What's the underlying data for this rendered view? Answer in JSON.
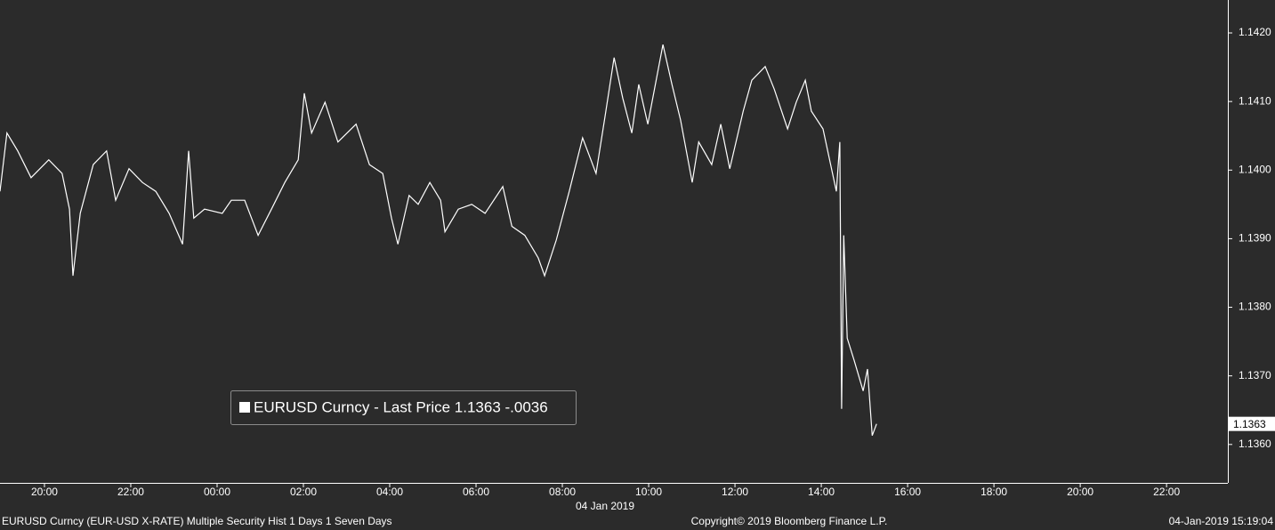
{
  "chart_data": {
    "type": "line",
    "series": [
      {
        "name": "EURUSD Curncy - Last Price 1.1363  -.0036",
        "color": "#ffffff",
        "x": [
          18.97,
          19.13,
          19.38,
          19.69,
          20.1,
          20.41,
          20.58,
          20.66,
          20.83,
          21.13,
          21.44,
          21.65,
          21.96,
          22.27,
          22.58,
          22.89,
          23.2,
          23.34,
          23.46,
          23.71,
          24.12,
          24.33,
          24.64,
          24.95,
          25.26,
          25.57,
          25.88,
          26.02,
          26.19,
          26.5,
          26.8,
          27.22,
          27.53,
          27.84,
          28.04,
          28.19,
          28.45,
          28.66,
          28.93,
          29.18,
          29.28,
          29.59,
          29.9,
          30.21,
          30.62,
          30.83,
          31.13,
          31.44,
          31.59,
          31.86,
          32.16,
          32.47,
          32.78,
          32.99,
          33.2,
          33.4,
          33.61,
          33.77,
          33.98,
          34.33,
          34.54,
          34.74,
          35.01,
          35.16,
          35.46,
          35.67,
          35.88,
          36.19,
          36.39,
          36.7,
          36.91,
          37.22,
          37.42,
          37.63,
          37.77,
          38.04,
          38.35,
          38.43,
          38.47,
          38.52,
          38.6,
          38.76,
          38.97,
          39.07,
          39.18,
          39.28
        ],
        "values": [
          1.13969,
          1.14054,
          1.14028,
          1.13989,
          1.14015,
          1.13995,
          1.13943,
          1.13846,
          1.13937,
          1.14008,
          1.14028,
          1.13956,
          1.14002,
          1.13982,
          1.13969,
          1.13937,
          1.13892,
          1.14028,
          1.1393,
          1.13943,
          1.13937,
          1.13956,
          1.13956,
          1.13905,
          1.13943,
          1.13982,
          1.14015,
          1.14112,
          1.14054,
          1.14099,
          1.14041,
          1.14067,
          1.14008,
          1.13995,
          1.1393,
          1.13892,
          1.13963,
          1.1395,
          1.13982,
          1.13956,
          1.1391,
          1.13943,
          1.1395,
          1.13937,
          1.13976,
          1.13918,
          1.13905,
          1.13872,
          1.13846,
          1.13898,
          1.13969,
          1.14047,
          1.13995,
          1.14079,
          1.14164,
          1.14105,
          1.14054,
          1.14125,
          1.14067,
          1.14183,
          1.14125,
          1.14073,
          1.13982,
          1.14041,
          1.14008,
          1.14067,
          1.14002,
          1.14086,
          1.14131,
          1.14151,
          1.14118,
          1.1406,
          1.14099,
          1.14131,
          1.14086,
          1.1406,
          1.13969,
          1.14041,
          1.13652,
          1.13905,
          1.13755,
          1.13723,
          1.13678,
          1.1371,
          1.13613,
          1.1363
        ]
      }
    ],
    "last_price": 1.1363,
    "xlim": [
      18.97,
      47.42
    ],
    "xticks": [
      {
        "value": 20,
        "label": "20:00"
      },
      {
        "value": 22,
        "label": "22:00"
      },
      {
        "value": 24,
        "label": "00:00"
      },
      {
        "value": 26,
        "label": "02:00"
      },
      {
        "value": 28,
        "label": "04:00"
      },
      {
        "value": 30,
        "label": "06:00"
      },
      {
        "value": 32,
        "label": "08:00"
      },
      {
        "value": 34,
        "label": "10:00"
      },
      {
        "value": 36,
        "label": "12:00"
      },
      {
        "value": 38,
        "label": "14:00"
      },
      {
        "value": 40,
        "label": "16:00"
      },
      {
        "value": 42,
        "label": "18:00"
      },
      {
        "value": 44,
        "label": "20:00"
      },
      {
        "value": 46,
        "label": "22:00"
      }
    ],
    "x_date_label": "04 Jan 2019",
    "ylim": [
      1.13544,
      1.14248
    ],
    "yticks": [
      {
        "value": 1.136,
        "label": "1.1360"
      },
      {
        "value": 1.137,
        "label": "1.1370"
      },
      {
        "value": 1.138,
        "label": "1.1380"
      },
      {
        "value": 1.139,
        "label": "1.1390"
      },
      {
        "value": 1.14,
        "label": "1.1400"
      },
      {
        "value": 1.141,
        "label": "1.1410"
      },
      {
        "value": 1.142,
        "label": "1.1420"
      }
    ],
    "footer": {
      "left": "EURUSD Curncy (EUR-USD X-RATE) Multiple Security Hist   1 Days 1 Seven Days",
      "center": "Copyright© 2019 Bloomberg Finance L.P.",
      "right": "04-Jan-2019 15:19:04"
    }
  }
}
